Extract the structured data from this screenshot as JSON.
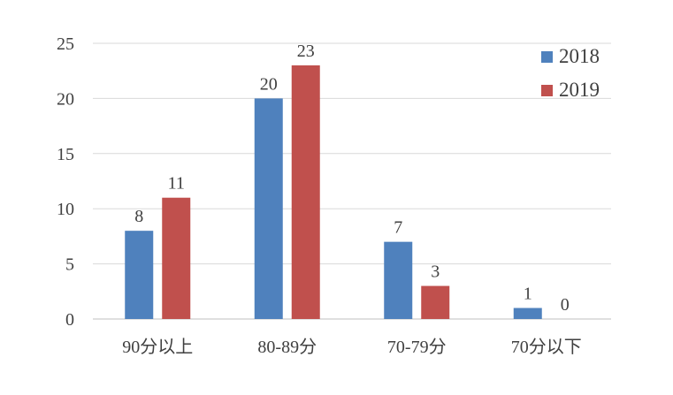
{
  "chart_data": {
    "type": "bar",
    "title": "",
    "xlabel": "",
    "ylabel": "",
    "categories": [
      "90分以上",
      "80-89分",
      "70-79分",
      "70分以下"
    ],
    "series": [
      {
        "name": "2018",
        "values": [
          8,
          20,
          7,
          1
        ],
        "color": "#4f81bd"
      },
      {
        "name": "2019",
        "values": [
          11,
          23,
          3,
          0
        ],
        "color": "#c0504d"
      }
    ],
    "y_ticks": [
      0,
      5,
      10,
      15,
      20,
      25
    ],
    "ylim": [
      0,
      25
    ],
    "grid": true,
    "legend_position": "top-right",
    "data_labels": true
  }
}
